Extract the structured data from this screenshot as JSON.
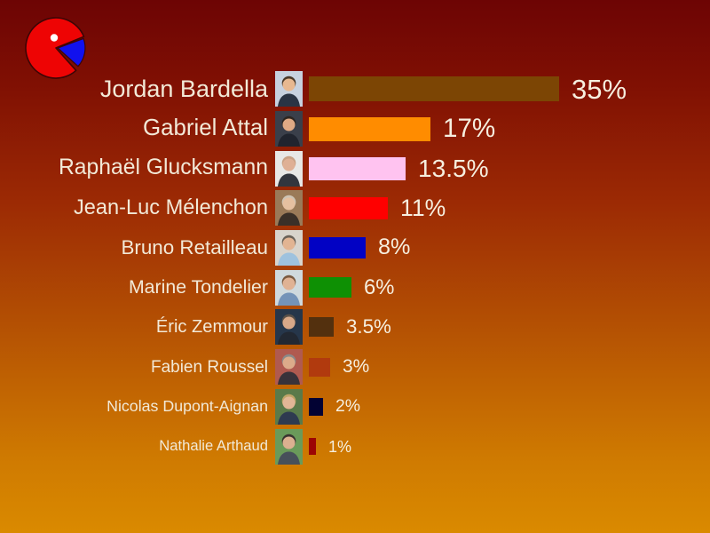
{
  "slide": {
    "background_top_color": "#6d0404",
    "background_bottom_color": "#da8a00",
    "text_color": "#f2e9d7"
  },
  "logo": {
    "name": "pie-chart-logo",
    "circle_color": "#ee0404",
    "slice_color": "#1111ee",
    "dot_color": "#ffffff",
    "outline_color": "#3d0505"
  },
  "chart_data": {
    "type": "bar",
    "orientation": "horizontal",
    "title": "",
    "xlabel": "",
    "ylabel": "",
    "xlim": [
      0,
      38
    ],
    "grid": false,
    "legend": "none",
    "categories": [
      "Jordan Bardella",
      "Gabriel Attal",
      "Raphaël Glucksmann",
      "Jean-Luc Mélenchon",
      "Bruno Retailleau",
      "Marine Tondelier",
      "Éric Zemmour",
      "Fabien Roussel",
      "Nicolas Dupont-Aignan",
      "Nathalie Arthaud"
    ],
    "values": [
      35,
      17,
      13.5,
      11,
      8,
      6,
      3.5,
      3,
      2,
      1
    ],
    "value_labels": [
      "35%",
      "17%",
      "13.5%",
      "11%",
      "8%",
      "6%",
      "3.5%",
      "3%",
      "2%",
      "1%"
    ],
    "bar_colors": [
      "#7c4504",
      "#ff8c00",
      "#ffc3f0",
      "#ff0000",
      "#0202c4",
      "#0e9004",
      "#53300e",
      "#b13a0e",
      "#020233",
      "#9c0404"
    ]
  },
  "photos": [
    {
      "bg": "#c7d1df",
      "suit": "#2a3444",
      "skin": "#e8b890",
      "hair": "#4a3828"
    },
    {
      "bg": "#3a3f4a",
      "suit": "#20242e",
      "skin": "#e0aa85",
      "hair": "#2e2620"
    },
    {
      "bg": "#e8e8e6",
      "suit": "#32363e",
      "skin": "#dfb095",
      "hair": "#c9a184"
    },
    {
      "bg": "#9a7a58",
      "suit": "#3a3028",
      "skin": "#e6c0a0",
      "hair": "#cfc4b4"
    },
    {
      "bg": "#d8d4cc",
      "suit": "#9ec2de",
      "skin": "#e2b492",
      "hair": "#6a6258"
    },
    {
      "bg": "#cfd9dd",
      "suit": "#7493b8",
      "skin": "#e0b294",
      "hair": "#7a5a40"
    },
    {
      "bg": "#26364a",
      "suit": "#222832",
      "skin": "#d8a888",
      "hair": "#5a5048"
    },
    {
      "bg": "#b05a50",
      "suit": "#38323a",
      "skin": "#dcab8a",
      "hair": "#8a8a8a"
    },
    {
      "bg": "#5a7a4a",
      "suit": "#2e3a50",
      "skin": "#e2b696",
      "hair": "#c0a468"
    },
    {
      "bg": "#6a9a5a",
      "suit": "#47505a",
      "skin": "#dcb090",
      "hair": "#3a3430"
    }
  ]
}
